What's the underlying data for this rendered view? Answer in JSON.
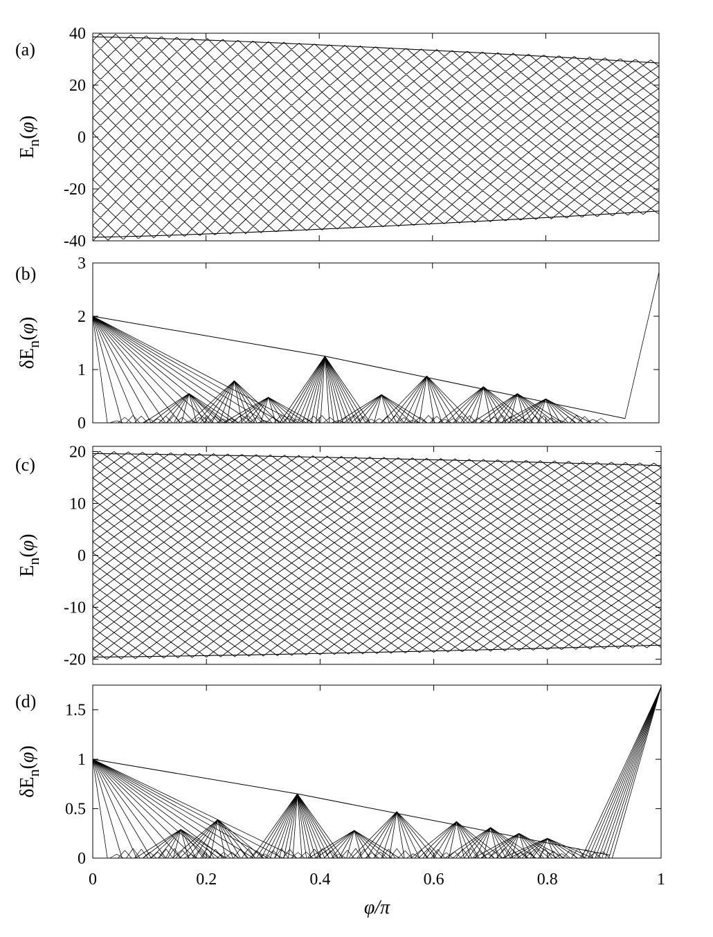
{
  "chart_data": [
    {
      "panel": "(a)",
      "type": "line",
      "xlabel": "",
      "ylabel": "E_n(φ)",
      "xlim": [
        0,
        1
      ],
      "ylim": [
        -40,
        40
      ],
      "yticks": [
        -40,
        -20,
        0,
        20,
        40
      ],
      "xticks": [
        0,
        0.2,
        0.4,
        0.6,
        0.8,
        1
      ],
      "show_xtick_labels": false,
      "series_model": {
        "description_values": "dense family of levels; outer envelope",
        "n_levels": 27,
        "max_at_0": 38.6,
        "max_at_1": 28.5,
        "crossing_period": 0.0135,
        "step_at_0": 2.97,
        "step_at_1": 2.19
      }
    },
    {
      "panel": "(b)",
      "type": "line",
      "xlabel": "",
      "ylabel": "δE_n(φ)",
      "xlim": [
        0,
        1
      ],
      "ylim": [
        0,
        3
      ],
      "yticks": [
        0,
        1,
        2,
        3
      ],
      "xticks": [
        0,
        0.2,
        0.4,
        0.6,
        0.8,
        1
      ],
      "show_xtick_labels": false,
      "peaks": [
        {
          "x": 0.0,
          "y": 2.0
        },
        {
          "x": 0.17,
          "y": 0.55
        },
        {
          "x": 0.25,
          "y": 0.79
        },
        {
          "x": 0.31,
          "y": 0.48
        },
        {
          "x": 0.41,
          "y": 1.25
        },
        {
          "x": 0.51,
          "y": 0.53
        },
        {
          "x": 0.59,
          "y": 0.88
        },
        {
          "x": 0.69,
          "y": 0.68
        },
        {
          "x": 0.75,
          "y": 0.55
        },
        {
          "x": 0.8,
          "y": 0.45
        }
      ],
      "envelope": [
        {
          "x": 0.0,
          "y": 2.0
        },
        {
          "x": 0.41,
          "y": 1.25
        },
        {
          "x": 0.94,
          "y": 0.08
        }
      ],
      "rising_branch": [
        {
          "x": 0.94,
          "y": 0.08
        },
        {
          "x": 1.0,
          "y": 2.83
        }
      ]
    },
    {
      "panel": "(c)",
      "type": "line",
      "xlabel": "",
      "ylabel": "E_n(φ)",
      "xlim": [
        0,
        1
      ],
      "ylim": [
        -21,
        21
      ],
      "yticks": [
        -20,
        -10,
        0,
        10,
        20
      ],
      "xticks": [
        0,
        0.2,
        0.4,
        0.6,
        0.8,
        1
      ],
      "show_xtick_labels": false,
      "series_model": {
        "description_values": "dense family of levels; outer envelope",
        "n_levels": 39,
        "max_at_0": 19.6,
        "max_at_1": 17.3,
        "crossing_period": 0.0125,
        "step_at_0": 1.03,
        "step_at_1": 0.91
      }
    },
    {
      "panel": "(d)",
      "type": "line",
      "xlabel": "φ/π",
      "ylabel": "δE_n(φ)",
      "xlim": [
        0,
        1
      ],
      "ylim": [
        0,
        1.75
      ],
      "yticks": [
        0,
        0.5,
        1,
        1.5
      ],
      "ytick_labels": [
        "0",
        "0.5",
        "1",
        "1.5"
      ],
      "xticks": [
        0,
        0.2,
        0.4,
        0.6,
        0.8,
        1
      ],
      "xtick_labels": [
        "0",
        "0.2",
        "0.4",
        "0.6",
        "0.8",
        "1"
      ],
      "show_xtick_labels": true,
      "peaks": [
        {
          "x": 0.0,
          "y": 1.0
        },
        {
          "x": 0.155,
          "y": 0.29
        },
        {
          "x": 0.22,
          "y": 0.39
        },
        {
          "x": 0.36,
          "y": 0.65
        },
        {
          "x": 0.46,
          "y": 0.28
        },
        {
          "x": 0.535,
          "y": 0.47
        },
        {
          "x": 0.64,
          "y": 0.37
        },
        {
          "x": 0.7,
          "y": 0.31
        },
        {
          "x": 0.75,
          "y": 0.25
        },
        {
          "x": 0.8,
          "y": 0.2
        }
      ],
      "envelope": [
        {
          "x": 0.0,
          "y": 1.0
        },
        {
          "x": 0.36,
          "y": 0.65
        },
        {
          "x": 0.91,
          "y": 0.03
        }
      ],
      "rising_branch": [
        {
          "x": 0.86,
          "y": 0.0
        },
        {
          "x": 1.0,
          "y": 1.73
        }
      ]
    }
  ]
}
